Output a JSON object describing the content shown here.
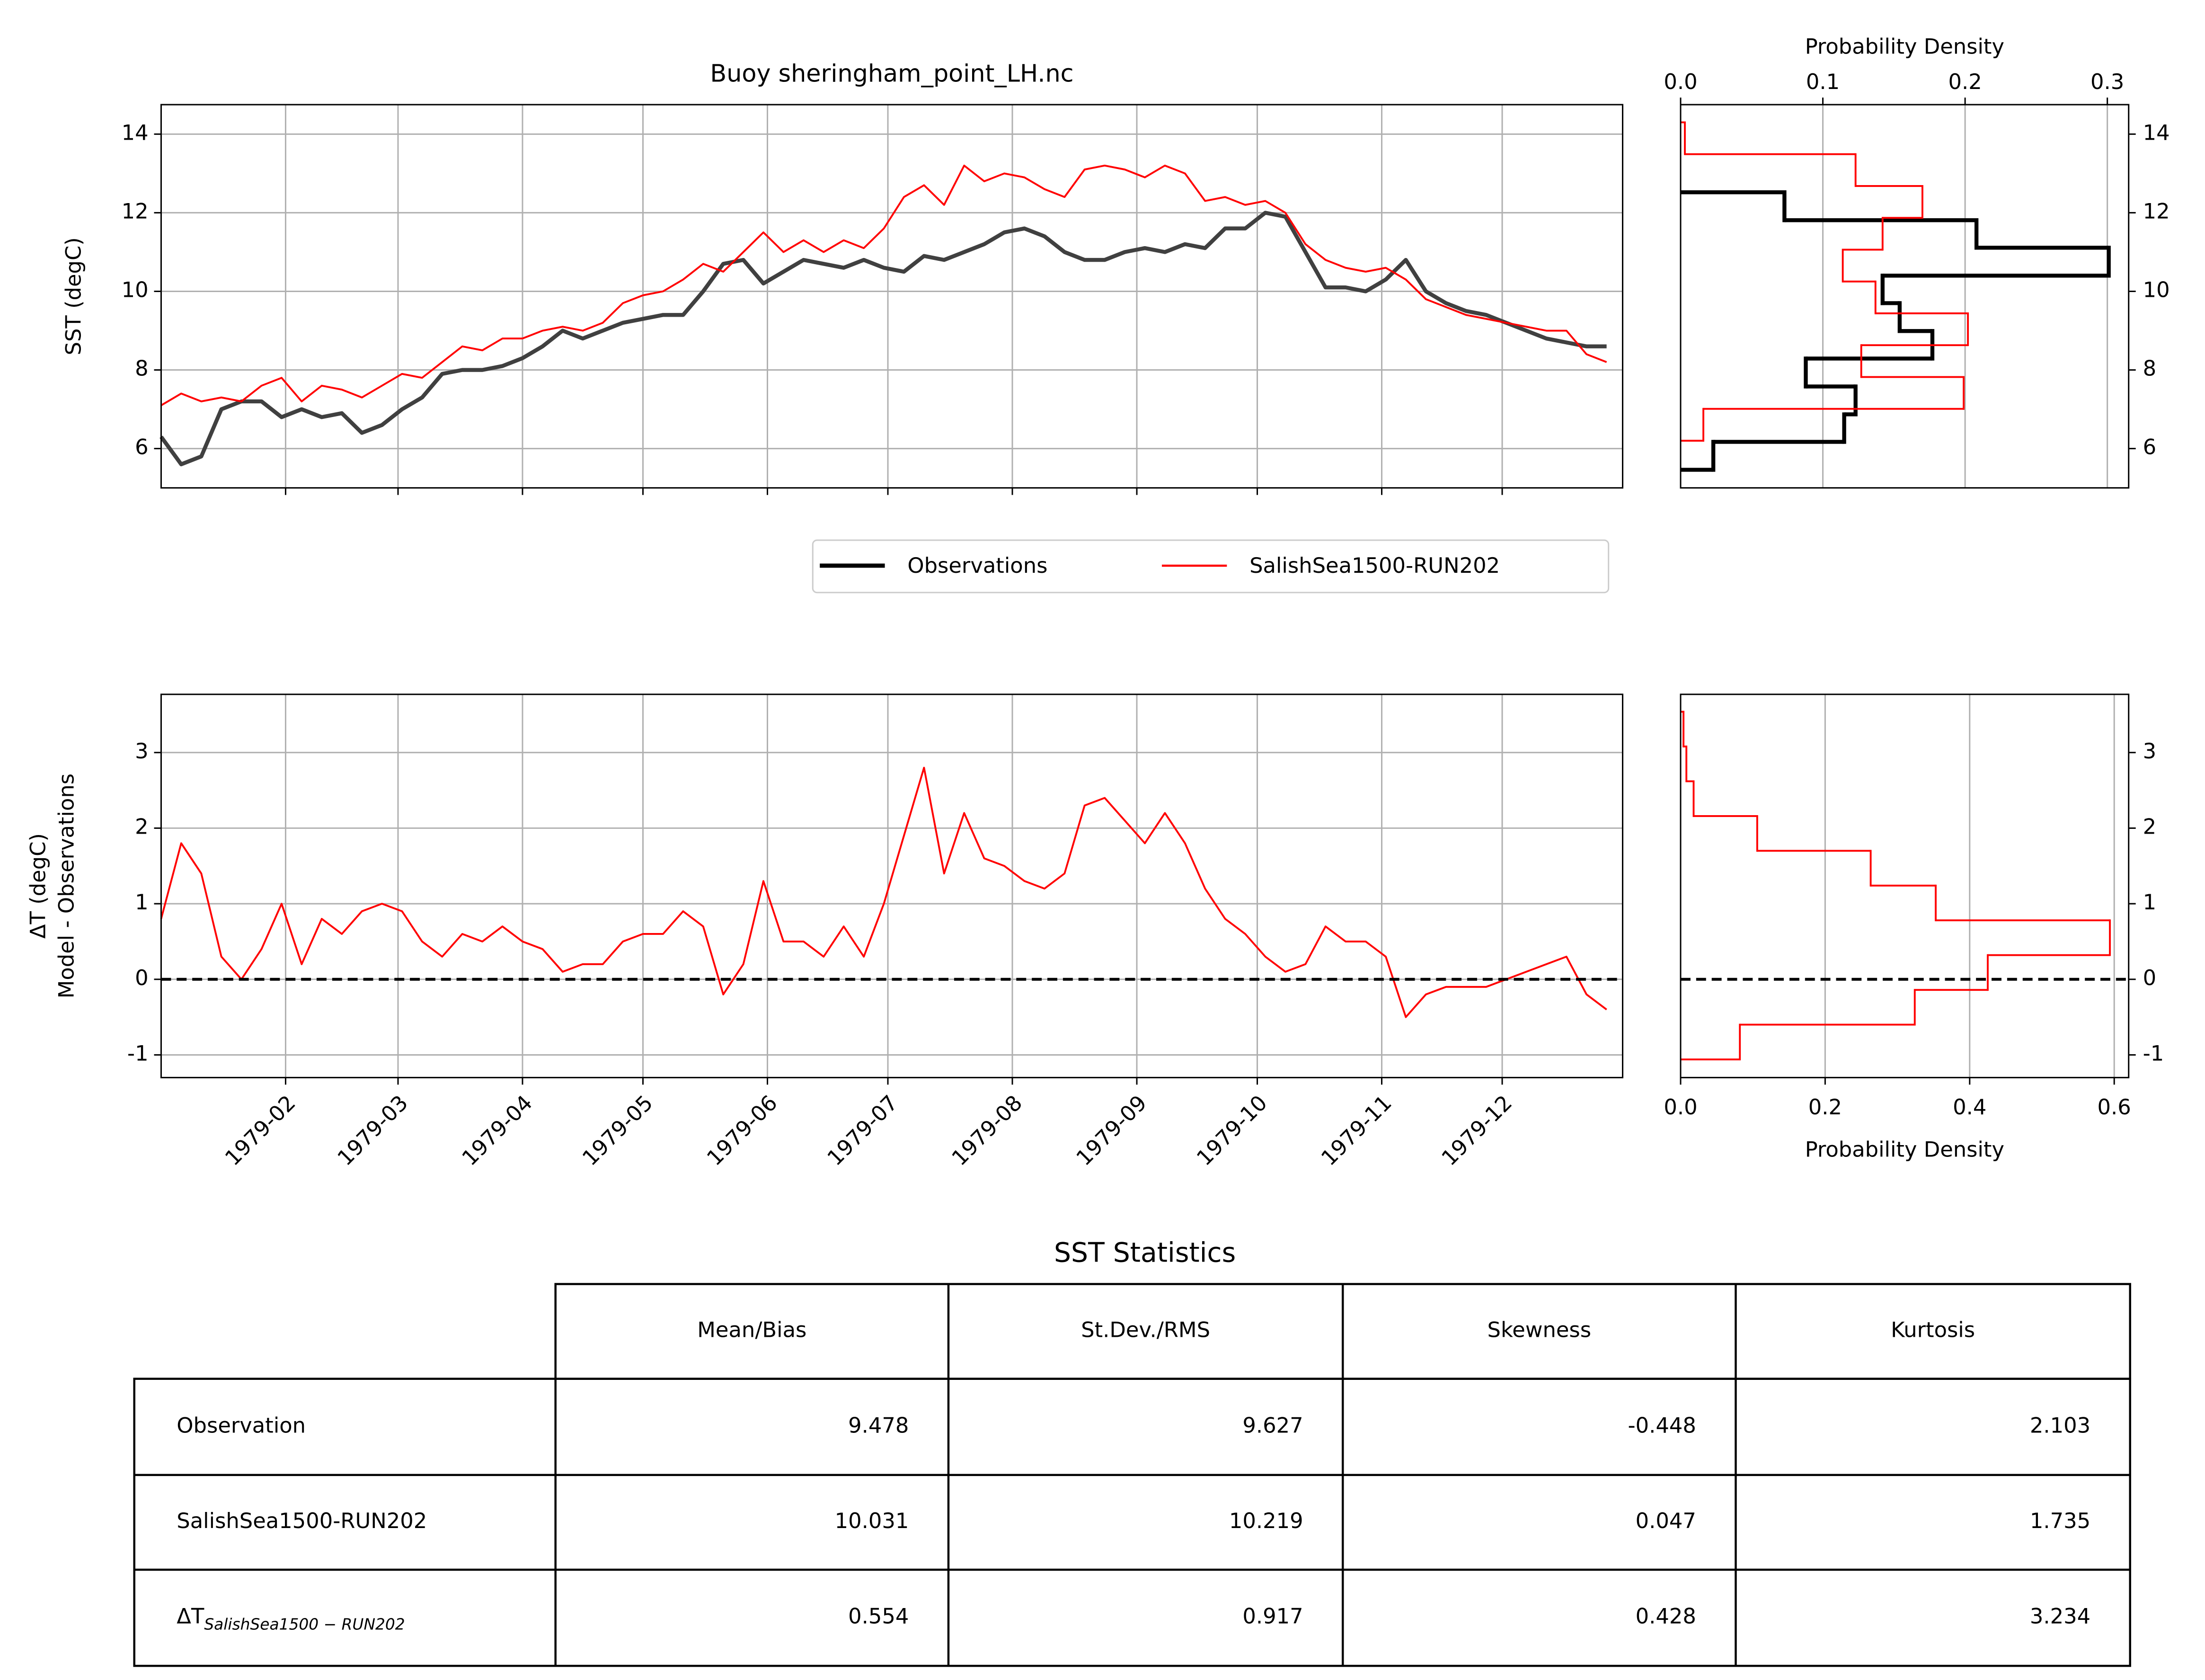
{
  "chart_data": [
    {
      "type": "line",
      "title": "Buoy sheringham_point_LH.nc",
      "ylabel": "SST (degC)",
      "x": [
        0,
        5,
        10,
        15,
        20,
        25,
        30,
        35,
        40,
        45,
        50,
        55,
        60,
        65,
        70,
        75,
        80,
        85,
        90,
        95,
        100,
        105,
        110,
        115,
        120,
        125,
        130,
        135,
        140,
        145,
        150,
        155,
        160,
        165,
        170,
        175,
        180,
        185,
        190,
        195,
        200,
        205,
        210,
        215,
        220,
        225,
        230,
        235,
        240,
        245,
        250,
        255,
        260,
        265,
        270,
        275,
        280,
        285,
        290,
        295,
        300,
        305,
        310,
        315,
        320,
        325,
        330,
        335,
        340,
        345,
        350,
        355,
        360
      ],
      "xlim": [
        0,
        364
      ],
      "ylim": [
        5,
        14.75
      ],
      "yticks": [
        6,
        8,
        10,
        12,
        14
      ],
      "grid": true,
      "series": [
        {
          "name": "Observations",
          "color": "#404040",
          "values": [
            6.3,
            5.6,
            5.8,
            7.0,
            7.2,
            7.2,
            6.8,
            7.0,
            6.8,
            6.9,
            6.4,
            6.6,
            7.0,
            7.3,
            7.9,
            8.0,
            8.0,
            8.1,
            8.3,
            8.6,
            9.0,
            8.8,
            9.0,
            9.2,
            9.3,
            9.4,
            9.4,
            10.0,
            10.7,
            10.8,
            10.2,
            10.5,
            10.8,
            10.7,
            10.6,
            10.8,
            10.6,
            10.5,
            10.9,
            10.8,
            11.0,
            11.2,
            11.5,
            11.6,
            11.4,
            11.0,
            10.8,
            10.8,
            11.0,
            11.1,
            11.0,
            11.2,
            11.1,
            11.6,
            11.6,
            12.0,
            11.9,
            11.0,
            10.1,
            10.1,
            10.0,
            10.3,
            10.8,
            10.0,
            9.7,
            9.5,
            9.4,
            9.2,
            9.0,
            8.8,
            8.7,
            8.6,
            8.6
          ]
        },
        {
          "name": "SalishSea1500-RUN202",
          "color": "#ff0000",
          "values": [
            7.1,
            7.4,
            7.2,
            7.3,
            7.2,
            7.6,
            7.8,
            7.2,
            7.6,
            7.5,
            7.3,
            7.6,
            7.9,
            7.8,
            8.2,
            8.6,
            8.5,
            8.8,
            8.8,
            9.0,
            9.1,
            9.0,
            9.2,
            9.7,
            9.9,
            10.0,
            10.3,
            10.7,
            10.5,
            11.0,
            11.5,
            11.0,
            11.3,
            11.0,
            11.3,
            11.1,
            11.6,
            12.4,
            12.7,
            12.2,
            13.2,
            12.8,
            13.0,
            12.9,
            12.6,
            12.4,
            13.1,
            13.2,
            13.1,
            12.9,
            13.2,
            13.0,
            12.3,
            12.4,
            12.2,
            12.3,
            12.0,
            11.2,
            10.8,
            10.6,
            10.5,
            10.6,
            10.3,
            9.8,
            9.6,
            9.4,
            9.3,
            9.2,
            9.1,
            9.0,
            9.0,
            8.4,
            8.2
          ]
        }
      ]
    },
    {
      "type": "line",
      "ylabel": [
        "ΔT (degC)",
        "Model - Observations"
      ],
      "x": [
        0,
        5,
        10,
        15,
        20,
        25,
        30,
        35,
        40,
        45,
        50,
        55,
        60,
        65,
        70,
        75,
        80,
        85,
        90,
        95,
        100,
        105,
        110,
        115,
        120,
        125,
        130,
        135,
        140,
        145,
        150,
        155,
        160,
        165,
        170,
        175,
        180,
        185,
        190,
        195,
        200,
        205,
        210,
        215,
        220,
        225,
        230,
        235,
        240,
        245,
        250,
        255,
        260,
        265,
        270,
        275,
        280,
        285,
        290,
        295,
        300,
        305,
        310,
        315,
        320,
        325,
        330,
        335,
        340,
        345,
        350,
        355,
        360
      ],
      "xlim": [
        0,
        364
      ],
      "ylim": [
        -1.3,
        3.77
      ],
      "yticks": [
        -1,
        0,
        1,
        2,
        3
      ],
      "grid": true,
      "hline": 0,
      "xticks": [
        {
          "value": 31,
          "label": "1979-02"
        },
        {
          "value": 59,
          "label": "1979-03"
        },
        {
          "value": 90,
          "label": "1979-04"
        },
        {
          "value": 120,
          "label": "1979-05"
        },
        {
          "value": 151,
          "label": "1979-06"
        },
        {
          "value": 181,
          "label": "1979-07"
        },
        {
          "value": 212,
          "label": "1979-08"
        },
        {
          "value": 243,
          "label": "1979-09"
        },
        {
          "value": 273,
          "label": "1979-10"
        },
        {
          "value": 304,
          "label": "1979-11"
        },
        {
          "value": 334,
          "label": "1979-12"
        }
      ],
      "series": [
        {
          "color": "#ff0000",
          "values": [
            0.8,
            1.8,
            1.4,
            0.3,
            0.0,
            0.4,
            1.0,
            0.2,
            0.8,
            0.6,
            0.9,
            1.0,
            0.9,
            0.5,
            0.3,
            0.6,
            0.5,
            0.7,
            0.5,
            0.4,
            0.1,
            0.2,
            0.2,
            0.5,
            0.6,
            0.6,
            0.9,
            0.7,
            -0.2,
            0.2,
            1.3,
            0.5,
            0.5,
            0.3,
            0.7,
            0.3,
            1.0,
            1.9,
            2.8,
            1.4,
            2.2,
            1.6,
            1.5,
            1.3,
            1.2,
            1.4,
            2.3,
            2.4,
            2.1,
            1.8,
            2.2,
            1.8,
            1.2,
            0.8,
            0.6,
            0.3,
            0.1,
            0.2,
            0.7,
            0.5,
            0.5,
            0.3,
            -0.5,
            -0.2,
            -0.1,
            -0.1,
            -0.1,
            0.0,
            0.1,
            0.2,
            0.3,
            -0.2,
            -0.4
          ]
        }
      ]
    },
    {
      "type": "histogram",
      "orientation": "horizontal",
      "xlabel": "Probability Density",
      "xaxis_position": "top",
      "yaxis_position": "right",
      "xlim": [
        0,
        0.315
      ],
      "ylim": [
        5,
        14.75
      ],
      "grid": true,
      "xticks": [
        {
          "value": 0,
          "label": "0.0"
        },
        0.1,
        0.2,
        0.3
      ],
      "yticks": [
        6,
        8,
        10,
        12,
        14
      ],
      "series": [
        {
          "color": "#000000",
          "bins": [
            5.46,
            6.17,
            6.87,
            7.58,
            8.29,
            8.99,
            9.7,
            10.4,
            11.11,
            11.81,
            12.52
          ],
          "values": [
            0.023,
            0.115,
            0.123,
            0.088,
            0.177,
            0.154,
            0.142,
            0.301,
            0.208,
            0.073
          ]
        },
        {
          "color": "#ff0000",
          "bins": [
            6.2,
            7.01,
            7.82,
            8.63,
            9.44,
            10.25,
            11.06,
            11.87,
            12.68,
            13.49,
            14.3
          ],
          "values": [
            0.016,
            0.199,
            0.127,
            0.202,
            0.137,
            0.114,
            0.142,
            0.17,
            0.123,
            0.003
          ]
        }
      ]
    },
    {
      "type": "histogram",
      "orientation": "horizontal",
      "xlabel": "Probability Density",
      "xaxis_position": "bottom",
      "yaxis_position": "right",
      "xlim": [
        0,
        0.62
      ],
      "ylim": [
        -1.3,
        3.77
      ],
      "grid": true,
      "hline": 0,
      "xticks": [
        {
          "value": 0,
          "label": "0.0"
        },
        0.2,
        0.4,
        0.6
      ],
      "yticks": [
        -1,
        0,
        1,
        2,
        3
      ],
      "series": [
        {
          "color": "#ff0000",
          "bins": [
            -1.06,
            -0.6,
            -0.14,
            0.32,
            0.78,
            1.24,
            1.7,
            2.16,
            2.62,
            3.08,
            3.54
          ],
          "values": [
            0.082,
            0.324,
            0.425,
            0.594,
            0.353,
            0.263,
            0.106,
            0.018,
            0.008,
            0.004
          ]
        }
      ]
    }
  ],
  "table": {
    "title": "SST Statistics",
    "columns": [
      "Mean/Bias",
      "St.Dev./RMS",
      "Skewness",
      "Kurtosis"
    ],
    "rows": [
      {
        "label": "Observation",
        "values": [
          9.478,
          9.627,
          -0.448,
          2.103
        ]
      },
      {
        "label": "SalishSea1500-RUN202",
        "values": [
          10.031,
          10.219,
          0.047,
          1.735
        ]
      },
      {
        "label": {
          "base": "ΔT",
          "sub": "SalishSea1500 − RUN202"
        },
        "values": [
          0.554,
          0.917,
          0.428,
          3.234
        ]
      }
    ]
  }
}
